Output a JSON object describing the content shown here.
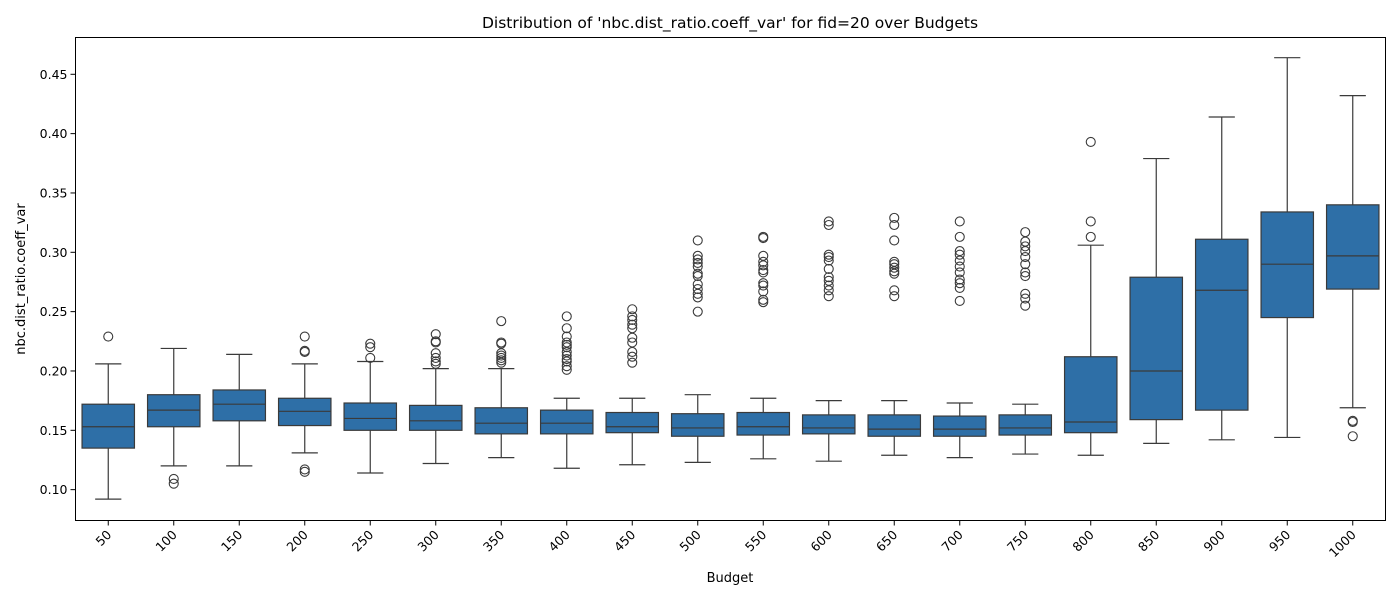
{
  "chart_data": {
    "type": "box",
    "title": "Distribution of 'nbc.dist_ratio.coeff_var' for fid=20 over Budgets",
    "xlabel": "Budget",
    "ylabel": "nbc.dist_ratio.coeff_var",
    "ylim": [
      0.074,
      0.481
    ],
    "yticks": [
      0.1,
      0.15,
      0.2,
      0.25,
      0.3,
      0.35,
      0.4,
      0.45
    ],
    "ytick_labels": [
      "0.10",
      "0.15",
      "0.20",
      "0.25",
      "0.30",
      "0.35",
      "0.40",
      "0.45"
    ],
    "grid": false,
    "box_color": "#2e6fa7",
    "line_color": "#3a3a3a",
    "categories": [
      "50",
      "100",
      "150",
      "200",
      "250",
      "300",
      "350",
      "400",
      "450",
      "500",
      "550",
      "600",
      "650",
      "700",
      "750",
      "800",
      "850",
      "900",
      "950",
      "1000"
    ],
    "boxes": [
      {
        "whisker_low": 0.092,
        "q1": 0.135,
        "median": 0.153,
        "q3": 0.172,
        "whisker_high": 0.206,
        "outliers": [
          0.229
        ]
      },
      {
        "whisker_low": 0.12,
        "q1": 0.153,
        "median": 0.167,
        "q3": 0.18,
        "whisker_high": 0.219,
        "outliers": [
          0.109,
          0.105
        ]
      },
      {
        "whisker_low": 0.12,
        "q1": 0.158,
        "median": 0.172,
        "q3": 0.184,
        "whisker_high": 0.214,
        "outliers": []
      },
      {
        "whisker_low": 0.131,
        "q1": 0.154,
        "median": 0.166,
        "q3": 0.177,
        "whisker_high": 0.206,
        "outliers": [
          0.229,
          0.217,
          0.216,
          0.117,
          0.115
        ]
      },
      {
        "whisker_low": 0.114,
        "q1": 0.15,
        "median": 0.16,
        "q3": 0.173,
        "whisker_high": 0.208,
        "outliers": [
          0.223,
          0.22,
          0.211
        ]
      },
      {
        "whisker_low": 0.122,
        "q1": 0.15,
        "median": 0.158,
        "q3": 0.171,
        "whisker_high": 0.202,
        "outliers": [
          0.231,
          0.225,
          0.224,
          0.215,
          0.211,
          0.208,
          0.206
        ]
      },
      {
        "whisker_low": 0.127,
        "q1": 0.147,
        "median": 0.156,
        "q3": 0.169,
        "whisker_high": 0.202,
        "outliers": [
          0.242,
          0.224,
          0.223,
          0.215,
          0.213,
          0.211,
          0.209,
          0.207
        ]
      },
      {
        "whisker_low": 0.118,
        "q1": 0.147,
        "median": 0.156,
        "q3": 0.167,
        "whisker_high": 0.177,
        "outliers": [
          0.246,
          0.236,
          0.229,
          0.224,
          0.222,
          0.22,
          0.216,
          0.213,
          0.21,
          0.208,
          0.204,
          0.201
        ]
      },
      {
        "whisker_low": 0.121,
        "q1": 0.148,
        "median": 0.153,
        "q3": 0.165,
        "whisker_high": 0.177,
        "outliers": [
          0.252,
          0.246,
          0.243,
          0.239,
          0.236,
          0.228,
          0.224,
          0.216,
          0.212,
          0.207
        ]
      },
      {
        "whisker_low": 0.123,
        "q1": 0.145,
        "median": 0.152,
        "q3": 0.164,
        "whisker_high": 0.18,
        "outliers": [
          0.31,
          0.297,
          0.294,
          0.291,
          0.288,
          0.282,
          0.28,
          0.273,
          0.269,
          0.265,
          0.262,
          0.25
        ]
      },
      {
        "whisker_low": 0.126,
        "q1": 0.146,
        "median": 0.153,
        "q3": 0.165,
        "whisker_high": 0.177,
        "outliers": [
          0.313,
          0.312,
          0.297,
          0.292,
          0.289,
          0.285,
          0.283,
          0.274,
          0.272,
          0.267,
          0.26,
          0.258
        ]
      },
      {
        "whisker_low": 0.124,
        "q1": 0.147,
        "median": 0.152,
        "q3": 0.163,
        "whisker_high": 0.175,
        "outliers": [
          0.326,
          0.323,
          0.298,
          0.296,
          0.293,
          0.286,
          0.279,
          0.276,
          0.272,
          0.268,
          0.263
        ]
      },
      {
        "whisker_low": 0.129,
        "q1": 0.145,
        "median": 0.151,
        "q3": 0.163,
        "whisker_high": 0.175,
        "outliers": [
          0.329,
          0.323,
          0.31,
          0.292,
          0.29,
          0.287,
          0.284,
          0.282,
          0.268,
          0.263
        ]
      },
      {
        "whisker_low": 0.127,
        "q1": 0.145,
        "median": 0.151,
        "q3": 0.162,
        "whisker_high": 0.173,
        "outliers": [
          0.326,
          0.313,
          0.301,
          0.298,
          0.293,
          0.288,
          0.283,
          0.277,
          0.274,
          0.27,
          0.259
        ]
      },
      {
        "whisker_low": 0.13,
        "q1": 0.146,
        "median": 0.152,
        "q3": 0.163,
        "whisker_high": 0.172,
        "outliers": [
          0.317,
          0.309,
          0.305,
          0.301,
          0.296,
          0.29,
          0.283,
          0.28,
          0.265,
          0.261,
          0.255
        ]
      },
      {
        "whisker_low": 0.129,
        "q1": 0.148,
        "median": 0.157,
        "q3": 0.212,
        "whisker_high": 0.306,
        "outliers": [
          0.393,
          0.326,
          0.313
        ]
      },
      {
        "whisker_low": 0.139,
        "q1": 0.159,
        "median": 0.2,
        "q3": 0.279,
        "whisker_high": 0.379,
        "outliers": []
      },
      {
        "whisker_low": 0.142,
        "q1": 0.167,
        "median": 0.268,
        "q3": 0.311,
        "whisker_high": 0.414,
        "outliers": []
      },
      {
        "whisker_low": 0.144,
        "q1": 0.245,
        "median": 0.29,
        "q3": 0.334,
        "whisker_high": 0.464,
        "outliers": []
      },
      {
        "whisker_low": 0.169,
        "q1": 0.269,
        "median": 0.297,
        "q3": 0.34,
        "whisker_high": 0.432,
        "outliers": [
          0.158,
          0.157,
          0.145
        ]
      }
    ]
  }
}
